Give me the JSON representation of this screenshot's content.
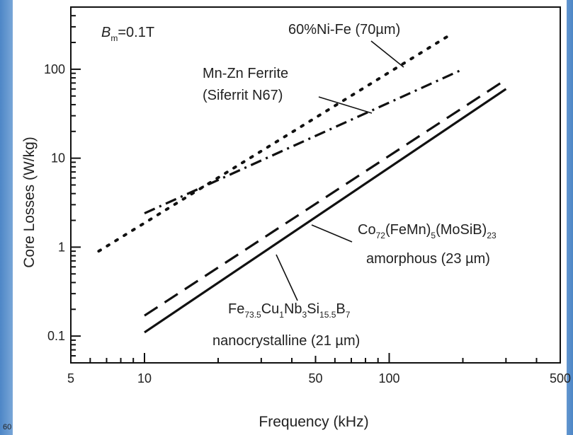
{
  "chart_data": {
    "type": "line",
    "xlabel": "Frequency (kHz)",
    "ylabel": "Core Losses (W/kg)",
    "xscale": "log",
    "yscale": "log",
    "xlim": [
      5,
      500
    ],
    "ylim": [
      0.05,
      500
    ],
    "x_ticks": [
      5,
      10,
      50,
      100,
      500
    ],
    "x_tick_labels": [
      "5",
      "10",
      "50",
      "100",
      "500"
    ],
    "y_ticks": [
      0.1,
      1,
      10,
      100
    ],
    "y_tick_labels": [
      "0.1",
      "1",
      "10",
      "100"
    ],
    "grid": false,
    "legend": "none",
    "condition_label": {
      "symbol": "B",
      "subscript": "m",
      "value": "=0.1T"
    },
    "series": [
      {
        "label_lines": [
          "60%Ni-Fe (70µm)"
        ],
        "style": "dotted",
        "color": "#111111",
        "points": [
          [
            6.5,
            0.9
          ],
          [
            180,
            250
          ]
        ]
      },
      {
        "label_lines": [
          "Mn-Zn Ferrite",
          "(Siferrit N67)"
        ],
        "style": "dashdot",
        "color": "#111111",
        "points": [
          [
            10,
            2.4
          ],
          [
            200,
            100
          ]
        ]
      },
      {
        "label_lines": [
          "Co72(FeMn)5(MoSiB)23",
          "amorphous (23 µm)"
        ],
        "style": "dashed",
        "color": "#111111",
        "points": [
          [
            10,
            0.17
          ],
          [
            290,
            72
          ]
        ]
      },
      {
        "label_lines": [
          "Fe73.5Cu1Nb3Si15.5B7",
          "nanocrystalline (21 µm)"
        ],
        "style": "solid",
        "color": "#111111",
        "points": [
          [
            10,
            0.11
          ],
          [
            300,
            60
          ]
        ]
      }
    ]
  },
  "annotations": {
    "nife": "60%Ni-Fe (70µm)",
    "ferrite_1": "Mn-Zn Ferrite",
    "ferrite_2": "(Siferrit N67)",
    "amorph_1": {
      "a": "Co",
      "a_sub": "72",
      "b": "(FeMn)",
      "b_sub": "5",
      "c": "(MoSiB)",
      "c_sub": "23"
    },
    "amorph_2": "amorphous (23 µm)",
    "nano_1": {
      "a": "Fe",
      "a_sub": "73.5",
      "b": "Cu",
      "b_sub": "1",
      "c": "Nb",
      "c_sub": "3",
      "d": "Si",
      "d_sub": "15.5",
      "e": "B",
      "e_sub": "7"
    },
    "nano_2": "nanocrystalline (21 µm)"
  },
  "corner_text": "60"
}
